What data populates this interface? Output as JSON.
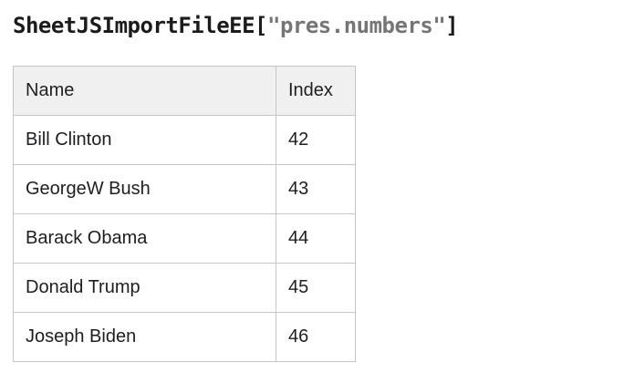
{
  "title": {
    "function_name": "SheetJSImportFileEE",
    "bracket_open": "[",
    "string_literal": "\"pres.numbers\"",
    "bracket_close": "]"
  },
  "table": {
    "headers": [
      "Name",
      "Index"
    ],
    "rows": [
      [
        "Bill Clinton",
        "42"
      ],
      [
        "GeorgeW Bush",
        "43"
      ],
      [
        "Barack Obama",
        "44"
      ],
      [
        "Donald Trump",
        "45"
      ],
      [
        "Joseph Biden",
        "46"
      ]
    ]
  },
  "colors": {
    "page_background": "#ffffff",
    "title_text": "#1b1b1d",
    "title_string": "#757575",
    "table_border": "#c6c6c6",
    "header_background": "#f0f0f0",
    "cell_text": "#1c1e21"
  }
}
